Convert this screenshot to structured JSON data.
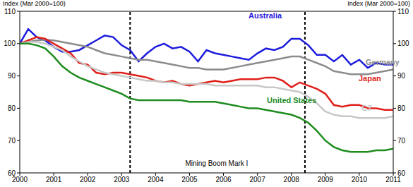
{
  "chart_data": {
    "type": "line",
    "ylabel": "Index (Mar 2000=100)",
    "y2label": "Index (Mar 2000=100)",
    "x": [
      2000,
      2000.25,
      2000.5,
      2000.75,
      2001,
      2001.25,
      2001.5,
      2001.75,
      2002,
      2002.25,
      2002.5,
      2002.75,
      2003,
      2003.25,
      2003.5,
      2003.75,
      2004,
      2004.25,
      2004.5,
      2004.75,
      2005,
      2005.25,
      2005.5,
      2005.75,
      2006,
      2006.25,
      2006.5,
      2006.75,
      2007,
      2007.25,
      2007.5,
      2007.75,
      2008,
      2008.25,
      2008.5,
      2008.75,
      2009,
      2009.25,
      2009.5,
      2009.75,
      2010,
      2010.25,
      2010.5,
      2010.75,
      2011
    ],
    "series": [
      {
        "name": "Australia",
        "color": "#1c1cdc",
        "values": [
          100,
          104.5,
          102,
          101,
          99,
          97.5,
          97.5,
          98,
          99.5,
          101,
          102.5,
          102,
          99.5,
          98,
          94.5,
          97,
          99,
          100,
          98.5,
          99,
          97.5,
          94.5,
          98,
          97,
          96.5,
          96,
          95.5,
          95,
          97,
          98.5,
          98,
          99,
          101.5,
          101.5,
          99.5,
          96.5,
          96.5,
          94.5,
          96.5,
          93.5,
          95,
          92.5,
          94,
          93.5,
          93.5
        ]
      },
      {
        "name": "Germany",
        "color": "#8c8c8c",
        "values": [
          100,
          100.5,
          101,
          101.2,
          101,
          100.5,
          100,
          99.5,
          99,
          98,
          97,
          96.5,
          96,
          95.5,
          95,
          95,
          94.5,
          94,
          93.5,
          93,
          92.5,
          92.5,
          92,
          92,
          92,
          92.5,
          93,
          93.5,
          94,
          94.5,
          95,
          95.5,
          96,
          96,
          95,
          94,
          93,
          91.5,
          91,
          90.5,
          90.5,
          90.5,
          91,
          91.5,
          92
        ]
      },
      {
        "name": "Japan",
        "color": "#e0201b",
        "values": [
          100,
          101,
          102,
          101.5,
          100,
          98.5,
          97,
          94,
          93.5,
          91,
          90.5,
          91,
          91,
          90.5,
          90,
          89.5,
          88.5,
          88,
          88.5,
          87.5,
          87,
          87.5,
          88,
          88.5,
          88,
          88.5,
          89,
          89,
          89,
          89.5,
          89.5,
          88.5,
          86.5,
          88,
          87,
          86,
          84.5,
          81,
          80.5,
          81,
          81,
          80,
          80,
          79.5,
          79.5
        ]
      },
      {
        "name": "G7",
        "color": "#c8c8c8",
        "values": [
          100,
          100.5,
          100.5,
          100,
          99,
          98,
          96,
          94.5,
          93,
          92,
          91,
          90.5,
          90,
          89.5,
          89,
          88.5,
          88.5,
          88,
          88,
          87.5,
          87.5,
          87.5,
          87.5,
          87,
          87,
          87,
          87,
          87,
          87,
          86.5,
          86.5,
          86,
          85.5,
          85,
          83.5,
          81.5,
          79,
          78,
          77.5,
          77.5,
          77,
          77,
          77,
          77,
          77.5
        ]
      },
      {
        "name": "United States",
        "color": "#1e8c1e",
        "values": [
          100,
          100,
          99.5,
          98.5,
          96,
          93,
          91,
          89.5,
          88.5,
          87.5,
          86.5,
          85.5,
          84.5,
          83,
          82.5,
          82.5,
          82.5,
          82.5,
          82.5,
          82.5,
          82,
          82,
          82,
          82,
          81.5,
          81,
          80.5,
          80,
          80,
          79.5,
          79,
          78.5,
          78,
          77,
          75.5,
          73,
          70,
          68,
          67,
          66.5,
          66.5,
          66.5,
          67,
          67,
          67.5
        ]
      }
    ],
    "xlim": [
      2000,
      2011
    ],
    "xticks": [
      2000,
      2001,
      2002,
      2003,
      2004,
      2005,
      2006,
      2007,
      2008,
      2009,
      2010,
      2011
    ],
    "ylim": [
      60,
      110
    ],
    "yticks": [
      60,
      70,
      80,
      90,
      100,
      110
    ],
    "y2lim": [
      60,
      110
    ],
    "y2ticks": [
      60,
      70,
      80,
      90,
      100,
      110
    ],
    "vlines": [
      2003.25,
      2008.4
    ],
    "annotation": {
      "text": "Mining Boom Mark I",
      "x": 2005.8,
      "y": 63
    },
    "grid": false,
    "legend": false
  }
}
